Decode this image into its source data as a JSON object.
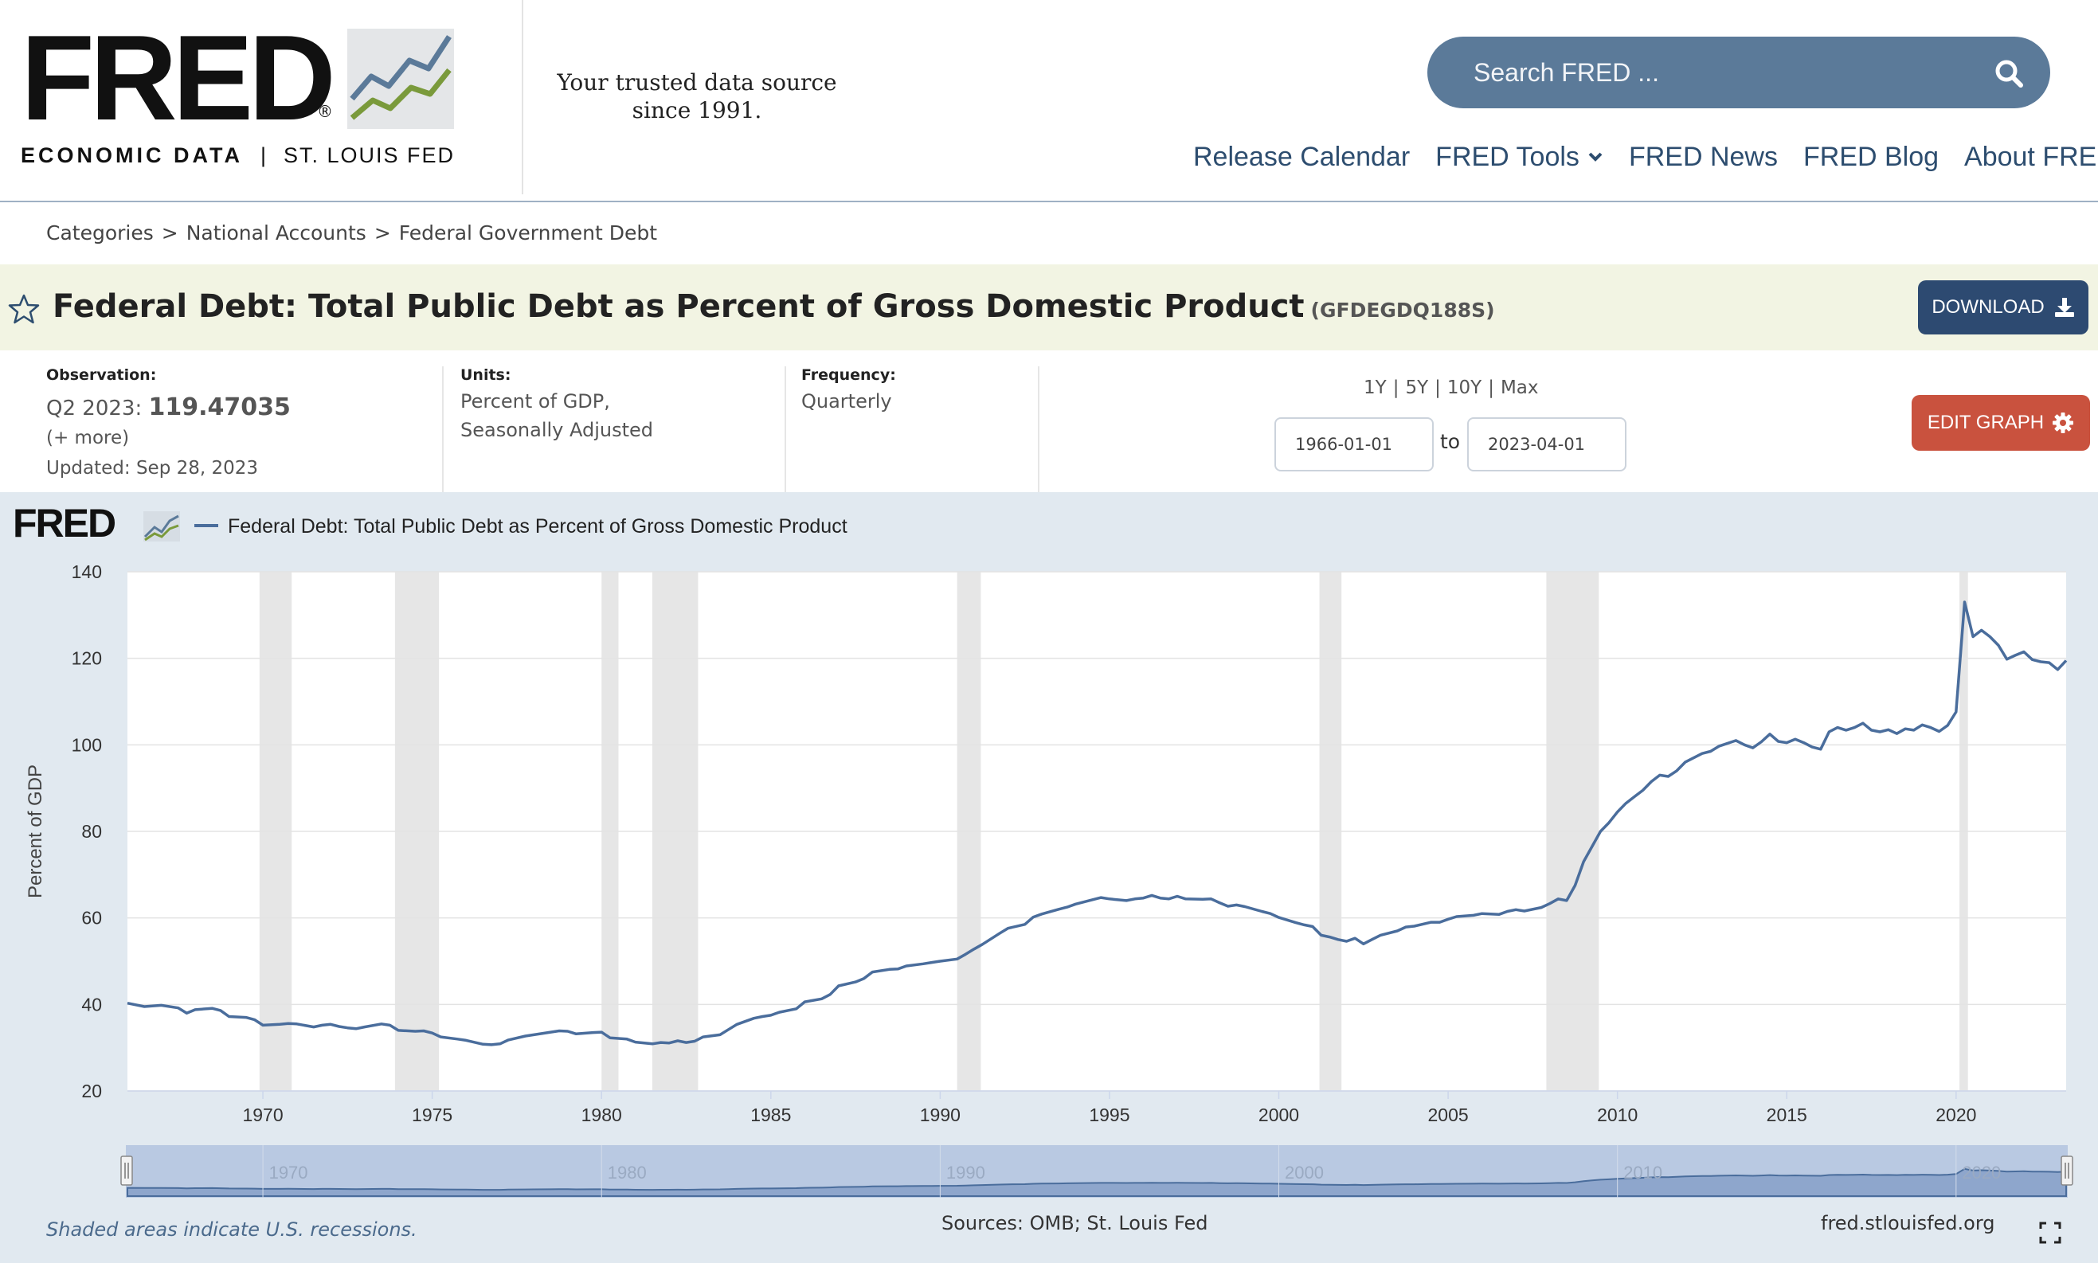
{
  "header": {
    "logo_text": "FRED",
    "logo_reg": "®",
    "logo_sub_economic": "ECONOMIC DATA",
    "logo_sub_sep": "|",
    "logo_sub_fed": "ST. LOUIS FED",
    "tagline_line1": "Your trusted data source",
    "tagline_line2": "since 1991.",
    "search_placeholder": "Search FRED ...",
    "nav": [
      {
        "label": "Release Calendar",
        "dropdown": false
      },
      {
        "label": "FRED Tools",
        "dropdown": true
      },
      {
        "label": "FRED News",
        "dropdown": false
      },
      {
        "label": "FRED Blog",
        "dropdown": false
      },
      {
        "label": "About FRED",
        "dropdown": true
      }
    ]
  },
  "breadcrumb": [
    "Categories",
    "National Accounts",
    "Federal Government Debt"
  ],
  "breadcrumb_sep": ">",
  "series": {
    "title": "Federal Debt: Total Public Debt as Percent of Gross Domestic Product",
    "id": "(GFDEGDQ188S)",
    "download_label": "DOWNLOAD",
    "edit_graph_label": "EDIT GRAPH"
  },
  "meta": {
    "observation_label": "Observation:",
    "observation_period": "Q2 2023:",
    "observation_value": "119.47035",
    "more": "(+ more)",
    "updated": "Updated: Sep 28, 2023",
    "units_label": "Units:",
    "units_line1": "Percent of GDP,",
    "units_line2": "Seasonally Adjusted",
    "frequency_label": "Frequency:",
    "frequency_value": "Quarterly",
    "range_links": [
      "1Y",
      "5Y",
      "10Y",
      "Max"
    ],
    "range_sep": "|",
    "date_start": "1966-01-01",
    "date_end": "2023-04-01",
    "date_to": "to"
  },
  "footer": {
    "note": "Shaded areas indicate U.S. recessions.",
    "sources": "Sources: OMB; St. Louis Fed",
    "url": "fred.stlouisfed.org"
  },
  "colors": {
    "series_line": "#4a6d9c",
    "recession_shade": "#e6e6e6",
    "search_bg": "#5b7a99",
    "download_bg": "#2d4a71",
    "edit_bg": "#c9523e",
    "panel_bg": "#e1e9f0",
    "title_bar_bg": "#f2f4e3",
    "nav_text": "#2d4d6f"
  },
  "icons": [
    "fred-logo-chart-icon",
    "search-icon",
    "chevron-down-icon",
    "star-icon",
    "download-icon",
    "gear-icon",
    "fullscreen-icon"
  ],
  "chart_data": {
    "type": "line",
    "title": "",
    "legend_label": "Federal Debt: Total Public Debt as Percent of Gross Domestic Product",
    "ylabel": "Percent of GDP",
    "xlim": [
      1966.0,
      2023.25
    ],
    "ylim": [
      20,
      140
    ],
    "yticks": [
      20,
      40,
      60,
      80,
      100,
      120,
      140
    ],
    "xticks": [
      1970,
      1975,
      1980,
      1985,
      1990,
      1995,
      2000,
      2005,
      2010,
      2015,
      2020
    ],
    "navigator_ticks": [
      1970,
      1980,
      1990,
      2000,
      2010,
      2020
    ],
    "grid": true,
    "legend_position": "top-left",
    "recessions": [
      [
        1969.9,
        1970.85
      ],
      [
        1973.9,
        1975.2
      ],
      [
        1980.0,
        1980.5
      ],
      [
        1981.5,
        1982.85
      ],
      [
        1990.5,
        1991.2
      ],
      [
        2001.2,
        2001.85
      ],
      [
        2007.9,
        2009.45
      ],
      [
        2020.1,
        2020.35
      ]
    ],
    "series": [
      {
        "name": "Federal Debt: Total Public Debt as Percent of Gross Domestic Product",
        "points": [
          [
            1966.0,
            40.3
          ],
          [
            1966.5,
            39.5
          ],
          [
            1967.0,
            39.8
          ],
          [
            1967.5,
            39.2
          ],
          [
            1967.75,
            38.0
          ],
          [
            1968.0,
            38.8
          ],
          [
            1968.5,
            39.1
          ],
          [
            1968.75,
            38.6
          ],
          [
            1969.0,
            37.2
          ],
          [
            1969.5,
            37.0
          ],
          [
            1969.75,
            36.5
          ],
          [
            1970.0,
            35.2
          ],
          [
            1970.5,
            35.4
          ],
          [
            1970.75,
            35.6
          ],
          [
            1971.0,
            35.5
          ],
          [
            1971.5,
            34.8
          ],
          [
            1971.75,
            35.2
          ],
          [
            1972.0,
            35.4
          ],
          [
            1972.25,
            34.9
          ],
          [
            1972.5,
            34.6
          ],
          [
            1972.75,
            34.4
          ],
          [
            1973.0,
            34.8
          ],
          [
            1973.5,
            35.5
          ],
          [
            1973.75,
            35.2
          ],
          [
            1974.0,
            34.0
          ],
          [
            1974.5,
            33.8
          ],
          [
            1974.75,
            33.9
          ],
          [
            1975.0,
            33.4
          ],
          [
            1975.25,
            32.5
          ],
          [
            1975.75,
            32.0
          ],
          [
            1976.0,
            31.7
          ],
          [
            1976.5,
            30.8
          ],
          [
            1976.75,
            30.7
          ],
          [
            1977.0,
            30.9
          ],
          [
            1977.25,
            31.8
          ],
          [
            1977.75,
            32.7
          ],
          [
            1978.0,
            33.0
          ],
          [
            1978.5,
            33.6
          ],
          [
            1978.75,
            33.9
          ],
          [
            1979.0,
            33.8
          ],
          [
            1979.25,
            33.2
          ],
          [
            1979.75,
            33.5
          ],
          [
            1980.0,
            33.6
          ],
          [
            1980.25,
            32.3
          ],
          [
            1980.75,
            32.0
          ],
          [
            1981.0,
            31.3
          ],
          [
            1981.5,
            30.9
          ],
          [
            1981.75,
            31.2
          ],
          [
            1982.0,
            31.1
          ],
          [
            1982.25,
            31.6
          ],
          [
            1982.5,
            31.2
          ],
          [
            1982.75,
            31.5
          ],
          [
            1983.0,
            32.5
          ],
          [
            1983.5,
            33.0
          ],
          [
            1983.75,
            34.2
          ],
          [
            1984.0,
            35.4
          ],
          [
            1984.5,
            36.8
          ],
          [
            1984.75,
            37.2
          ],
          [
            1985.0,
            37.5
          ],
          [
            1985.25,
            38.2
          ],
          [
            1985.75,
            39.0
          ],
          [
            1986.0,
            40.6
          ],
          [
            1986.5,
            41.3
          ],
          [
            1986.75,
            42.3
          ],
          [
            1987.0,
            44.3
          ],
          [
            1987.5,
            45.2
          ],
          [
            1987.75,
            46.0
          ],
          [
            1988.0,
            47.5
          ],
          [
            1988.5,
            48.1
          ],
          [
            1988.75,
            48.2
          ],
          [
            1989.0,
            48.9
          ],
          [
            1989.5,
            49.4
          ],
          [
            1989.75,
            49.7
          ],
          [
            1990.0,
            50.0
          ],
          [
            1990.5,
            50.5
          ],
          [
            1990.75,
            51.6
          ],
          [
            1991.0,
            52.8
          ],
          [
            1991.25,
            53.9
          ],
          [
            1991.75,
            56.4
          ],
          [
            1992.0,
            57.6
          ],
          [
            1992.5,
            58.5
          ],
          [
            1992.75,
            60.2
          ],
          [
            1993.0,
            60.9
          ],
          [
            1993.5,
            62.0
          ],
          [
            1993.75,
            62.5
          ],
          [
            1994.0,
            63.2
          ],
          [
            1994.5,
            64.2
          ],
          [
            1994.75,
            64.7
          ],
          [
            1995.0,
            64.4
          ],
          [
            1995.5,
            64.0
          ],
          [
            1995.75,
            64.4
          ],
          [
            1996.0,
            64.6
          ],
          [
            1996.25,
            65.2
          ],
          [
            1996.5,
            64.6
          ],
          [
            1996.75,
            64.4
          ],
          [
            1997.0,
            65.0
          ],
          [
            1997.25,
            64.4
          ],
          [
            1997.75,
            64.3
          ],
          [
            1998.0,
            64.4
          ],
          [
            1998.25,
            63.5
          ],
          [
            1998.5,
            62.7
          ],
          [
            1998.75,
            63.0
          ],
          [
            1999.0,
            62.6
          ],
          [
            1999.5,
            61.5
          ],
          [
            1999.75,
            61.0
          ],
          [
            2000.0,
            60.1
          ],
          [
            2000.5,
            58.9
          ],
          [
            2000.75,
            58.4
          ],
          [
            2001.0,
            58.0
          ],
          [
            2001.25,
            56.0
          ],
          [
            2001.5,
            55.6
          ],
          [
            2001.75,
            55.0
          ],
          [
            2002.0,
            54.6
          ],
          [
            2002.25,
            55.3
          ],
          [
            2002.5,
            54.0
          ],
          [
            2002.75,
            55.0
          ],
          [
            2003.0,
            56.0
          ],
          [
            2003.5,
            57.0
          ],
          [
            2003.75,
            57.9
          ],
          [
            2004.0,
            58.1
          ],
          [
            2004.5,
            59.0
          ],
          [
            2004.75,
            59.0
          ],
          [
            2005.0,
            59.7
          ],
          [
            2005.25,
            60.3
          ],
          [
            2005.75,
            60.6
          ],
          [
            2006.0,
            61.0
          ],
          [
            2006.5,
            60.8
          ],
          [
            2006.75,
            61.5
          ],
          [
            2007.0,
            61.9
          ],
          [
            2007.25,
            61.6
          ],
          [
            2007.75,
            62.4
          ],
          [
            2008.0,
            63.3
          ],
          [
            2008.25,
            64.4
          ],
          [
            2008.5,
            64.0
          ],
          [
            2008.75,
            67.5
          ],
          [
            2009.0,
            73.0
          ],
          [
            2009.25,
            76.5
          ],
          [
            2009.5,
            80.0
          ],
          [
            2009.75,
            82.0
          ],
          [
            2010.0,
            84.5
          ],
          [
            2010.25,
            86.5
          ],
          [
            2010.5,
            88.0
          ],
          [
            2010.75,
            89.5
          ],
          [
            2011.0,
            91.5
          ],
          [
            2011.25,
            93.0
          ],
          [
            2011.5,
            92.7
          ],
          [
            2011.75,
            94.0
          ],
          [
            2012.0,
            96.0
          ],
          [
            2012.5,
            98.0
          ],
          [
            2012.75,
            98.5
          ],
          [
            2013.0,
            99.7
          ],
          [
            2013.5,
            101.0
          ],
          [
            2013.75,
            100.0
          ],
          [
            2014.0,
            99.3
          ],
          [
            2014.25,
            100.7
          ],
          [
            2014.5,
            102.5
          ],
          [
            2014.75,
            100.8
          ],
          [
            2015.0,
            100.5
          ],
          [
            2015.25,
            101.3
          ],
          [
            2015.5,
            100.5
          ],
          [
            2015.75,
            99.5
          ],
          [
            2016.0,
            99.0
          ],
          [
            2016.25,
            103.0
          ],
          [
            2016.5,
            104.0
          ],
          [
            2016.75,
            103.4
          ],
          [
            2017.0,
            104.0
          ],
          [
            2017.25,
            105.0
          ],
          [
            2017.5,
            103.4
          ],
          [
            2017.75,
            103.0
          ],
          [
            2018.0,
            103.5
          ],
          [
            2018.25,
            102.6
          ],
          [
            2018.5,
            103.7
          ],
          [
            2018.75,
            103.4
          ],
          [
            2019.0,
            104.6
          ],
          [
            2019.25,
            104.0
          ],
          [
            2019.5,
            103.1
          ],
          [
            2019.75,
            104.5
          ],
          [
            2020.0,
            107.6
          ],
          [
            2020.25,
            133.0
          ],
          [
            2020.5,
            125.0
          ],
          [
            2020.75,
            126.5
          ],
          [
            2021.0,
            125.0
          ],
          [
            2021.25,
            123.0
          ],
          [
            2021.5,
            119.8
          ],
          [
            2021.75,
            120.7
          ],
          [
            2022.0,
            121.5
          ],
          [
            2022.25,
            119.7
          ],
          [
            2022.5,
            119.2
          ],
          [
            2022.75,
            119.0
          ],
          [
            2023.0,
            117.4
          ],
          [
            2023.25,
            119.5
          ]
        ]
      }
    ]
  }
}
